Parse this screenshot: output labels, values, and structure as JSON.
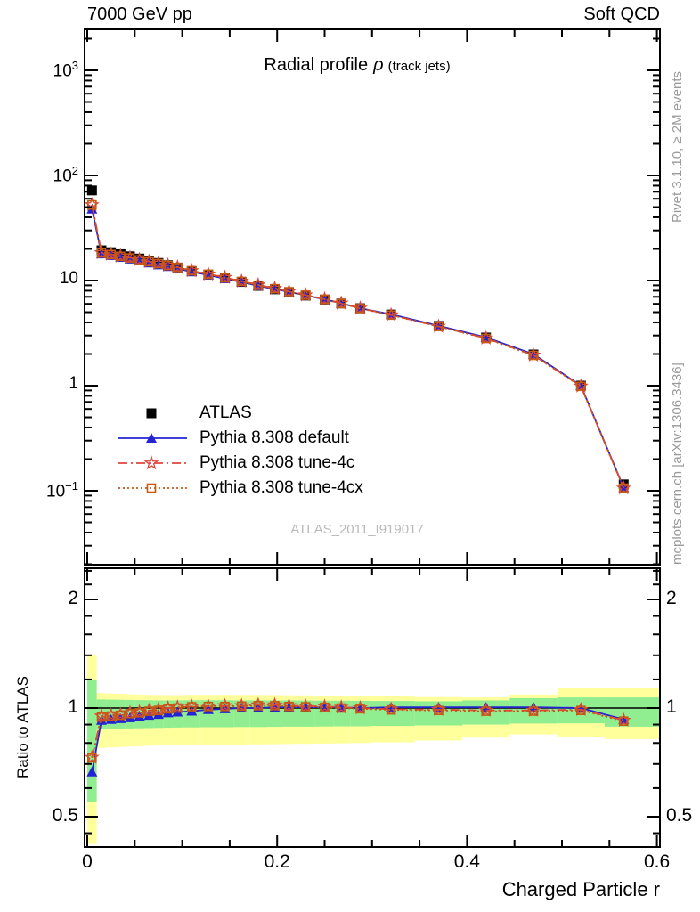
{
  "header": {
    "left": "7000 GeV pp",
    "right": "Soft QCD"
  },
  "title": {
    "text": "Radial profile",
    "symbol": "ρ",
    "suffix": "(track jets)"
  },
  "watermark": "ATLAS_2011_I919017",
  "side_notes": {
    "top_right": "Rivet 3.1.10, ≥ 2M events",
    "bottom_right": "mcplots.cern.ch [arXiv:1306.3436]"
  },
  "colors": {
    "atlas": "#000000",
    "pythia_default": "#2323d3",
    "pythia_4c": "#e0453c",
    "pythia_4cx": "#c55a11",
    "band_green": "#90ee90",
    "band_yellow": "#ffff9c",
    "frame": "#000000",
    "gray_text": "#9a9a9a",
    "watermark": "#b9b9b9"
  },
  "legend": [
    {
      "label": "ATLAS",
      "marker": "square_filled",
      "line": "none",
      "color": "#000000"
    },
    {
      "label": "Pythia 8.308 default",
      "marker": "triangle_filled",
      "line": "solid",
      "color": "#2323d3"
    },
    {
      "label": "Pythia 8.308 tune-4c",
      "marker": "star_open",
      "line": "dashdot",
      "color": "#e0453c"
    },
    {
      "label": "Pythia 8.308 tune-4cx",
      "marker": "square_open",
      "line": "dotted",
      "color": "#c55a11"
    }
  ],
  "axes": {
    "x": {
      "title": "Charged Particle r",
      "range": [
        0,
        0.6
      ],
      "major_ticks": [
        0,
        0.2,
        0.4,
        0.6
      ],
      "tick_labels": [
        "0",
        "0.2",
        "0.4",
        "0.6"
      ],
      "minor_step": 0.05
    },
    "y_main": {
      "scale": "log",
      "range": [
        0.02,
        2400
      ],
      "ticks": [
        {
          "label": "10",
          "sup": "3",
          "value": 1000
        },
        {
          "label": "10",
          "sup": "2",
          "value": 100
        },
        {
          "label": "10",
          "sup": "",
          "value": 10
        },
        {
          "label": "1",
          "sup": "",
          "value": 1
        },
        {
          "label": "10",
          "sup": "−1",
          "value": 0.1
        }
      ]
    },
    "y_ratio": {
      "title": "Ratio to ATLAS",
      "scale": "log",
      "range": [
        0.416,
        2.4
      ],
      "major_ticks": [
        2,
        1,
        0.5
      ],
      "tick_labels": [
        "2",
        "1",
        "0.5"
      ],
      "minor_ticks": [
        2.4,
        2.2,
        1.8,
        1.6,
        1.4,
        1.2,
        0.9,
        0.8,
        0.7,
        0.6,
        0.45
      ]
    }
  },
  "chart_data": {
    "type": "line",
    "title": "Radial profile ρ (track jets)",
    "xlabel": "Charged Particle r",
    "x": [
      0.005,
      0.015,
      0.025,
      0.035,
      0.045,
      0.055,
      0.065,
      0.075,
      0.085,
      0.095,
      0.11,
      0.1275,
      0.145,
      0.1625,
      0.18,
      0.1975,
      0.2125,
      0.23,
      0.25,
      0.2675,
      0.2875,
      0.32,
      0.37,
      0.42,
      0.47,
      0.52,
      0.565
    ],
    "series_main": [
      {
        "name": "ATLAS",
        "values": [
          72,
          19.4,
          18.6,
          17.8,
          17.0,
          16.2,
          15.4,
          14.7,
          14.0,
          13.3,
          12.3,
          11.4,
          10.5,
          9.7,
          8.9,
          8.25,
          7.75,
          7.2,
          6.6,
          6.05,
          5.45,
          4.75,
          3.7,
          2.87,
          1.98,
          1.0,
          0.115
        ]
      },
      {
        "name": "Pythia 8.308 default",
        "values": [
          47.9,
          17.9,
          17.3,
          16.6,
          16.0,
          15.4,
          14.7,
          14.1,
          13.6,
          13.0,
          12.1,
          11.3,
          10.4,
          9.7,
          8.9,
          8.29,
          7.79,
          7.24,
          6.63,
          6.08,
          5.45,
          4.77,
          3.72,
          2.88,
          1.99,
          1.0,
          0.107
        ]
      },
      {
        "name": "Pythia 8.308 tune-4c",
        "values": [
          52.6,
          18.4,
          17.8,
          17.1,
          16.5,
          15.8,
          15.2,
          14.6,
          14.0,
          13.4,
          12.4,
          11.5,
          10.7,
          9.85,
          9.08,
          8.42,
          7.87,
          7.29,
          6.67,
          6.08,
          5.45,
          4.71,
          3.66,
          2.83,
          1.95,
          0.99,
          0.106
        ]
      },
      {
        "name": "Pythia 8.308 tune-4cx",
        "values": [
          52.4,
          18.3,
          17.7,
          17.0,
          16.4,
          15.7,
          15.1,
          14.5,
          13.9,
          13.3,
          12.4,
          11.5,
          10.6,
          9.82,
          9.03,
          8.37,
          7.83,
          7.26,
          6.63,
          6.05,
          5.42,
          4.69,
          3.65,
          2.81,
          1.94,
          0.985,
          0.106
        ]
      }
    ],
    "series_ratio": [
      {
        "name": "Pythia 8.308 default",
        "values": [
          0.665,
          0.925,
          0.93,
          0.935,
          0.94,
          0.95,
          0.955,
          0.96,
          0.97,
          0.975,
          0.98,
          0.99,
          0.995,
          1.0,
          1.0,
          1.005,
          1.005,
          1.005,
          1.005,
          1.005,
          1.0,
          1.005,
          1.005,
          1.005,
          1.005,
          1.0,
          0.93
        ]
      },
      {
        "name": "Pythia 8.308 tune-4c",
        "values": [
          0.73,
          0.95,
          0.955,
          0.96,
          0.97,
          0.975,
          0.985,
          0.99,
          1.0,
          1.005,
          1.01,
          1.012,
          1.015,
          1.015,
          1.02,
          1.02,
          1.015,
          1.012,
          1.01,
          1.005,
          1.0,
          0.992,
          0.99,
          0.985,
          0.985,
          0.99,
          0.925
        ]
      },
      {
        "name": "Pythia 8.308 tune-4cx",
        "values": [
          0.728,
          0.945,
          0.95,
          0.955,
          0.965,
          0.97,
          0.98,
          0.985,
          0.995,
          1.0,
          1.008,
          1.01,
          1.01,
          1.012,
          1.015,
          1.015,
          1.01,
          1.008,
          1.005,
          1.0,
          0.995,
          0.988,
          0.985,
          0.98,
          0.98,
          0.985,
          0.92
        ]
      }
    ],
    "ratio_reference": 1,
    "ratio_bands": {
      "edges": [
        0,
        0.01,
        0.02,
        0.03,
        0.04,
        0.05,
        0.06,
        0.07,
        0.08,
        0.09,
        0.1,
        0.119,
        0.136,
        0.154,
        0.171,
        0.189,
        0.205,
        0.221,
        0.24,
        0.259,
        0.277,
        0.298,
        0.345,
        0.395,
        0.445,
        0.495,
        0.545,
        0.603
      ],
      "yellow": [
        [
          0.42,
          1.4
        ],
        [
          0.775,
          1.1
        ],
        [
          0.778,
          1.097
        ],
        [
          0.78,
          1.095
        ],
        [
          0.782,
          1.092
        ],
        [
          0.784,
          1.09
        ],
        [
          0.786,
          1.088
        ],
        [
          0.787,
          1.087
        ],
        [
          0.788,
          1.086
        ],
        [
          0.79,
          1.085
        ],
        [
          0.79,
          1.088
        ],
        [
          0.79,
          1.088
        ],
        [
          0.792,
          1.088
        ],
        [
          0.792,
          1.087
        ],
        [
          0.793,
          1.087
        ],
        [
          0.794,
          1.086
        ],
        [
          0.795,
          1.085
        ],
        [
          0.796,
          1.084
        ],
        [
          0.797,
          1.083
        ],
        [
          0.798,
          1.082
        ],
        [
          0.8,
          1.081
        ],
        [
          0.803,
          1.078
        ],
        [
          0.813,
          1.072
        ],
        [
          0.828,
          1.07
        ],
        [
          0.845,
          1.09
        ],
        [
          0.83,
          1.138
        ],
        [
          0.82,
          1.138
        ]
      ],
      "green": [
        [
          0.55,
          1.2
        ],
        [
          0.872,
          1.056
        ],
        [
          0.874,
          1.055
        ],
        [
          0.876,
          1.054
        ],
        [
          0.878,
          1.053
        ],
        [
          0.879,
          1.052
        ],
        [
          0.88,
          1.051
        ],
        [
          0.881,
          1.05
        ],
        [
          0.882,
          1.05
        ],
        [
          0.883,
          1.05
        ],
        [
          0.884,
          1.051
        ],
        [
          0.885,
          1.051
        ],
        [
          0.885,
          1.051
        ],
        [
          0.886,
          1.05
        ],
        [
          0.886,
          1.05
        ],
        [
          0.887,
          1.05
        ],
        [
          0.888,
          1.05
        ],
        [
          0.888,
          1.049
        ],
        [
          0.889,
          1.048
        ],
        [
          0.89,
          1.048
        ],
        [
          0.89,
          1.047
        ],
        [
          0.892,
          1.046
        ],
        [
          0.895,
          1.044
        ],
        [
          0.9,
          1.05
        ],
        [
          0.906,
          1.065
        ],
        [
          0.907,
          1.07
        ],
        [
          0.888,
          1.07
        ]
      ]
    }
  }
}
